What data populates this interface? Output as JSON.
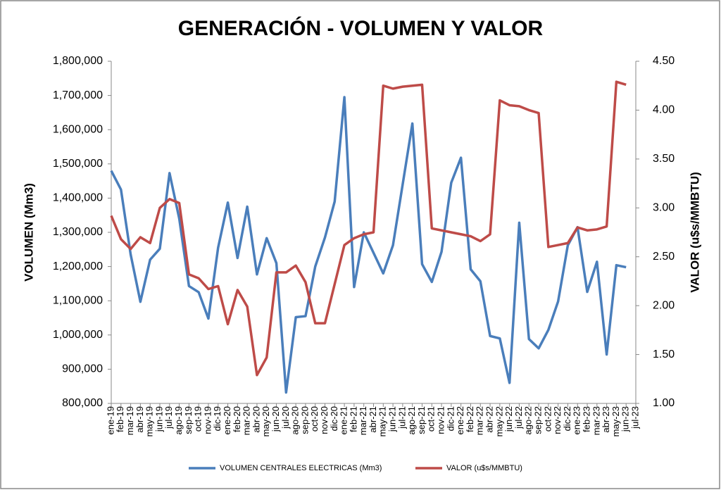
{
  "chart_data": {
    "type": "line",
    "title": "GENERACIÓN - VOLUMEN Y VALOR",
    "y_label": "VOLUMEN (Mm3)",
    "y2_label": "VALOR (u$s/MMBTU)",
    "categories": [
      "ene-19",
      "feb-19",
      "mar-19",
      "abr-19",
      "may-19",
      "jun-19",
      "jul-19",
      "ago-19",
      "sep-19",
      "oct-19",
      "nov-19",
      "dic-19",
      "ene-20",
      "feb-20",
      "mar-20",
      "abr-20",
      "may-20",
      "jun-20",
      "jul-20",
      "ago-20",
      "sep-20",
      "oct-20",
      "nov-20",
      "dic-20",
      "ene-21",
      "feb-21",
      "mar-21",
      "abr-21",
      "may-21",
      "jun-21",
      "jul-21",
      "ago-21",
      "sep-21",
      "oct-21",
      "nov-21",
      "dic-21",
      "ene-22",
      "feb-22",
      "mar-22",
      "abr-22",
      "may-22",
      "jun-22",
      "jul-22",
      "ago-22",
      "sep-22",
      "oct-22",
      "nov-22",
      "dic-22",
      "ene-23",
      "feb-23",
      "mar-23",
      "abr-23",
      "may-23",
      "jun-23",
      "jul-23"
    ],
    "series": [
      {
        "name": "VOLUMEN CENTRALES ELECTRICAS (Mm3)",
        "color": "#4a7ebb",
        "axis": "y",
        "values": [
          1480000,
          1425000,
          1235000,
          1097000,
          1220000,
          1252000,
          1473000,
          1340000,
          1143000,
          1125000,
          1048000,
          1255000,
          1387000,
          1225000,
          1375000,
          1177000,
          1283000,
          1210000,
          832000,
          1052000,
          1055000,
          1200000,
          1285000,
          1390000,
          1695000,
          1140000,
          1300000,
          1240000,
          1180000,
          1262000,
          1440000,
          1618000,
          1207000,
          1155000,
          1243000,
          1445000,
          1518000,
          1192000,
          1157000,
          997000,
          990000,
          860000,
          1328000,
          988000,
          961000,
          1015000,
          1098000,
          1262000,
          1315000,
          1126000,
          1214000,
          943000,
          1204000,
          1198000,
          null
        ]
      },
      {
        "name": "VALOR (u$s/MMBTU)",
        "color": "#be4b48",
        "axis": "y2",
        "values": [
          2.92,
          2.68,
          2.58,
          2.7,
          2.64,
          3.0,
          3.09,
          3.05,
          2.32,
          2.28,
          2.17,
          2.2,
          1.81,
          2.16,
          1.99,
          1.29,
          1.47,
          2.34,
          2.34,
          2.41,
          2.24,
          1.82,
          1.82,
          2.22,
          2.62,
          2.69,
          2.73,
          2.75,
          4.25,
          4.22,
          4.24,
          4.25,
          4.26,
          2.79,
          2.77,
          2.75,
          2.73,
          2.71,
          2.66,
          2.73,
          4.1,
          4.05,
          4.04,
          4.0,
          3.97,
          2.6,
          2.62,
          2.64,
          2.8,
          2.77,
          2.78,
          2.81,
          4.29,
          4.26,
          null
        ]
      }
    ],
    "ylim": [
      800000,
      1800000
    ],
    "yticks": [
      {
        "value": 800000,
        "label": "800,000"
      },
      {
        "value": 900000,
        "label": "900,000"
      },
      {
        "value": 1000000,
        "label": "1,000,000"
      },
      {
        "value": 1100000,
        "label": "1,100,000"
      },
      {
        "value": 1200000,
        "label": "1,200,000"
      },
      {
        "value": 1300000,
        "label": "1,300,000"
      },
      {
        "value": 1400000,
        "label": "1,400,000"
      },
      {
        "value": 1500000,
        "label": "1,500,000"
      },
      {
        "value": 1600000,
        "label": "1,600,000"
      },
      {
        "value": 1700000,
        "label": "1,700,000"
      },
      {
        "value": 1800000,
        "label": "1,800,000"
      }
    ],
    "y2lim": [
      1.0,
      4.5
    ],
    "y2ticks": [
      {
        "value": 1.0,
        "label": "1.00"
      },
      {
        "value": 1.5,
        "label": "1.50"
      },
      {
        "value": 2.0,
        "label": "2.00"
      },
      {
        "value": 2.5,
        "label": "2.50"
      },
      {
        "value": 3.0,
        "label": "3.00"
      },
      {
        "value": 3.5,
        "label": "3.50"
      },
      {
        "value": 4.0,
        "label": "4.00"
      },
      {
        "value": 4.5,
        "label": "4.50"
      }
    ],
    "grid": false,
    "legend": "bottom"
  }
}
